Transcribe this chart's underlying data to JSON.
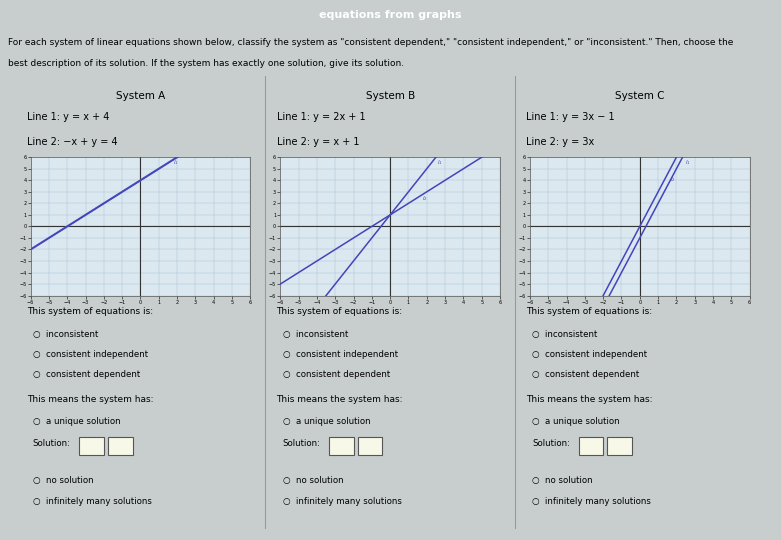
{
  "header_color": "#1a7a8a",
  "header_text": "equations from graphs",
  "page_bg": "#c8cece",
  "outer_box_bg": "#f0f0f0",
  "inner_box_bg": "#e8e8ec",
  "graph_bg": "#dce8f0",
  "instructions_line1": "For each system of linear equations shown below, classify the system as \"consistent dependent,\" \"consistent independent,\" or \"inconsistent.\" Then, choose the",
  "instructions_line2": "best description of its solution. If the system has exactly one solution, give its solution.",
  "systems": [
    {
      "title": "System A",
      "line1_label": "Line 1: y = x + 4",
      "line2_label": "Line 2: −x + y = 4",
      "line1_slope": 1,
      "line1_intercept": 4,
      "line2_slope": 1,
      "line2_intercept": 4,
      "line1_color": "#4444bb",
      "line2_color": "#7777cc",
      "xlim": [
        -6,
        6
      ],
      "ylim": [
        -6,
        6
      ]
    },
    {
      "title": "System B",
      "line1_label": "Line 1: y = 2x + 1",
      "line2_label": "Line 2: y = x + 1",
      "line1_slope": 2,
      "line1_intercept": 1,
      "line2_slope": 1,
      "line2_intercept": 1,
      "line1_color": "#4444bb",
      "line2_color": "#4444bb",
      "xlim": [
        -6,
        6
      ],
      "ylim": [
        -6,
        6
      ]
    },
    {
      "title": "System C",
      "line1_label": "Line 1: y = 3x − 1",
      "line2_label": "Line 2: y = 3x",
      "line1_slope": 3,
      "line1_intercept": -1,
      "line2_slope": 3,
      "line2_intercept": 0,
      "line1_color": "#4444bb",
      "line2_color": "#4444bb",
      "xlim": [
        -6,
        6
      ],
      "ylim": [
        -6,
        6
      ]
    }
  ],
  "radio_options": [
    "inconsistent",
    "consistent independent",
    "consistent dependent"
  ],
  "means_header": "This means the system has:",
  "means_option": "a unique solution",
  "solution_label": "Solution:",
  "other_options_B": [
    "no solution",
    "infinitely many solutions"
  ],
  "other_options_C": [
    "no solution",
    "infinitely many solutions"
  ]
}
